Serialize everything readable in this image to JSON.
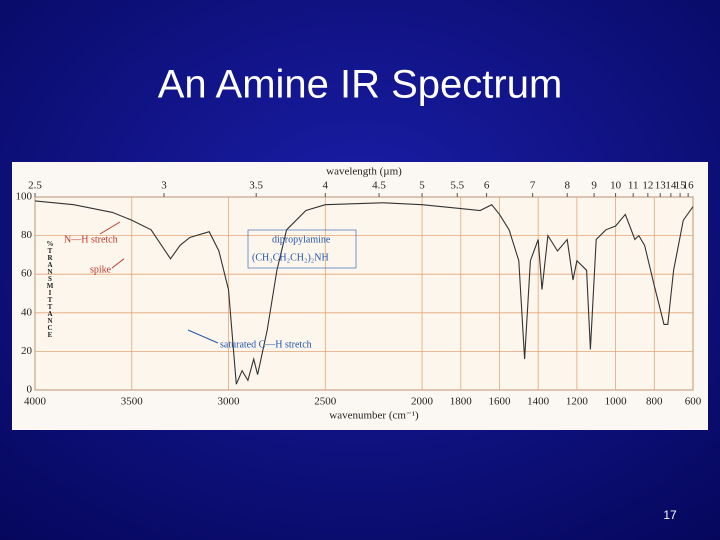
{
  "slide_title": "An Amine IR Spectrum",
  "page_number": "17",
  "chart_data": {
    "type": "line",
    "top_axis_label": "wavelength (µm)",
    "x_label": "wavenumber (cm⁻¹)",
    "y_label": "%TRANSMITTANCE",
    "annotations": [
      "N—H stretch",
      "spike",
      "dipropylamine",
      "(CH₃CH₂CH₂)₂NH",
      "saturated C—H stretch"
    ],
    "x": [
      4000,
      3800,
      3600,
      3500,
      3400,
      3300,
      3250,
      3200,
      3100,
      3050,
      3000,
      2960,
      2930,
      2900,
      2870,
      2850,
      2800,
      2750,
      2700,
      2600,
      2500,
      2200,
      2000,
      1800,
      1700,
      1640,
      1600,
      1550,
      1500,
      1470,
      1440,
      1400,
      1380,
      1350,
      1300,
      1250,
      1220,
      1200,
      1150,
      1130,
      1100,
      1050,
      1000,
      950,
      900,
      880,
      850,
      800,
      750,
      730,
      700,
      650,
      600
    ],
    "values": [
      98,
      96,
      92,
      88,
      83,
      68,
      75,
      79,
      82,
      72,
      52,
      3,
      10,
      5,
      16,
      8,
      31,
      62,
      83,
      93,
      96,
      97,
      96,
      94,
      93,
      96,
      91,
      83,
      67,
      16,
      67,
      78,
      52,
      80,
      72,
      78,
      57,
      67,
      62,
      21,
      78,
      83,
      85,
      91,
      78,
      80,
      75,
      54,
      34,
      34,
      62,
      88,
      95
    ],
    "color": "#333333",
    "xlim": [
      4000,
      600
    ],
    "xticks": [
      4000,
      3500,
      3000,
      2500,
      2000,
      1800,
      1600,
      1400,
      1200,
      1000,
      800,
      600
    ],
    "x2ticks": [
      2.5,
      3,
      3.5,
      4,
      4.5,
      5,
      5.5,
      6,
      7,
      8,
      9,
      10,
      11,
      12,
      13,
      14,
      15,
      16
    ],
    "ylim": [
      0,
      100
    ],
    "yticks": [
      0,
      20,
      40,
      60,
      80,
      100
    ],
    "grid": true,
    "grid_color": "#e2a77a"
  }
}
